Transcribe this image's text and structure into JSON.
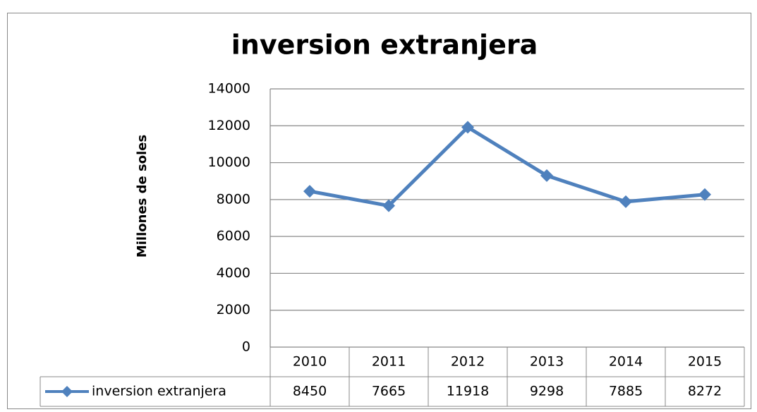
{
  "chart_data": {
    "type": "line",
    "title": "inversion extranjera",
    "y_label": "Millones de soles",
    "categories": [
      "2010",
      "2011",
      "2012",
      "2013",
      "2014",
      "2015"
    ],
    "series": [
      {
        "name": "inversion extranjera",
        "color": "#4f81bd",
        "values": [
          8450,
          7665,
          11918,
          9298,
          7885,
          8272
        ]
      }
    ],
    "ylim": [
      0,
      14000
    ],
    "yticks": [
      0,
      2000,
      4000,
      6000,
      8000,
      10000,
      12000,
      14000
    ],
    "grid": true
  }
}
